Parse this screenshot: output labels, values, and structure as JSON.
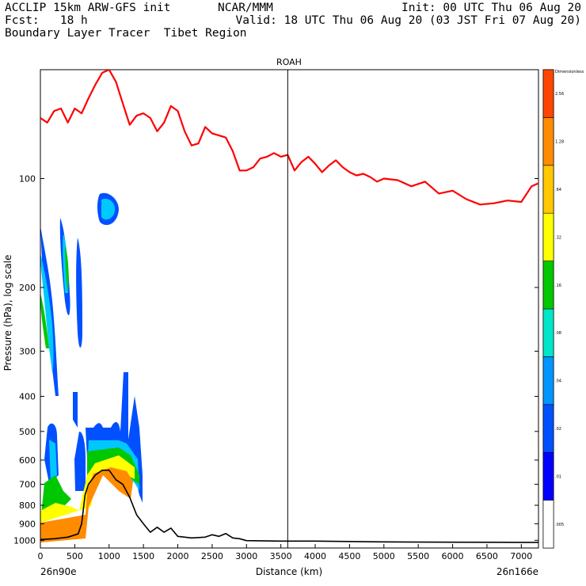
{
  "header": {
    "line1": "ACCLIP 15km ARW-GFS init",
    "model": "NCAR/MMM",
    "line2": "Fcst:   18 h",
    "line3": "Boundary Layer Tracer  Tibet Region",
    "init": "Init: 00 UTC Thu 06 Aug 20",
    "valid": "Valid: 18 UTC Thu 06 Aug 20 (03 JST Fri 07 Aug 20)"
  },
  "chart_data": {
    "type": "cross-section",
    "title": "ROAH",
    "xlabel": "Distance (km)",
    "ylabel": "Pressure (hPa), log scale",
    "xlim": [
      0,
      7250
    ],
    "ylim_hpa": [
      1050,
      50
    ],
    "x_ticks": [
      0,
      500,
      1000,
      1500,
      2000,
      2500,
      3000,
      3500,
      4000,
      4500,
      5000,
      5500,
      6000,
      6500,
      7000
    ],
    "x_tick_labels": [
      "0",
      "500",
      "1000",
      "1500",
      "2000",
      "2500",
      "3000",
      "3500",
      "4000",
      "4500",
      "5000",
      "5500",
      "6000",
      "6500",
      "7000"
    ],
    "y_ticks": [
      100,
      200,
      300,
      400,
      500,
      600,
      700,
      800,
      900,
      1000
    ],
    "y_tick_labels": [
      "100",
      "200",
      "300",
      "400",
      "500",
      "600",
      "700",
      "800",
      "900",
      "1000"
    ],
    "start_label": "26n90e",
    "end_label": "26n166e",
    "vertical_marker_km": 3600,
    "colorbar": {
      "unit_label": "Dimensionless",
      "levels": [
        ".005",
        ".01",
        ".02",
        ".04",
        ".08",
        ".16",
        ".32",
        ".64",
        "1.28",
        "2.56"
      ],
      "colors": [
        "#ffffff",
        "#0000ff",
        "#0050ff",
        "#0096ff",
        "#00e6c8",
        "#00c800",
        "#ffff00",
        "#ffc800",
        "#ff8c00",
        "#ff4600"
      ]
    },
    "series": [
      {
        "name": "tropopause",
        "color": "#ff0000",
        "x": [
          0,
          100,
          200,
          300,
          400,
          500,
          600,
          700,
          800,
          900,
          1000,
          1100,
          1200,
          1300,
          1400,
          1500,
          1600,
          1700,
          1800,
          1900,
          2000,
          2100,
          2200,
          2300,
          2400,
          2500,
          2600,
          2700,
          2800,
          2900,
          3000,
          3100,
          3200,
          3300,
          3400,
          3500,
          3600,
          3700,
          3800,
          3900,
          4000,
          4100,
          4200,
          4300,
          4400,
          4500,
          4600,
          4700,
          4800,
          4900,
          5000,
          5200,
          5400,
          5600,
          5800,
          6000,
          6200,
          6400,
          6600,
          6800,
          7000,
          7150,
          7250
        ],
        "p": [
          68,
          70,
          65,
          64,
          70,
          64,
          66,
          60,
          55,
          51,
          50,
          54,
          62,
          71,
          67,
          66,
          68,
          74,
          70,
          63,
          65,
          74,
          81,
          80,
          72,
          75,
          76,
          77,
          84,
          95,
          95,
          93,
          88,
          87,
          85,
          87,
          86,
          95,
          90,
          87,
          91,
          96,
          92,
          89,
          93,
          96,
          98,
          97,
          99,
          102,
          100,
          101,
          105,
          102,
          110,
          108,
          114,
          118,
          117,
          115,
          116,
          105,
          103
        ]
      },
      {
        "name": "terrain",
        "color": "#000000",
        "x": [
          0,
          200,
          400,
          550,
          600,
          650,
          700,
          800,
          900,
          1000,
          1100,
          1200,
          1300,
          1400,
          1500,
          1600,
          1700,
          1800,
          1900,
          2000,
          2200,
          2400,
          2500,
          2600,
          2700,
          2800,
          2900,
          3000,
          3500,
          4000,
          5000,
          6000,
          7000,
          7250
        ],
        "p": [
          995,
          990,
          980,
          960,
          900,
          750,
          700,
          660,
          640,
          640,
          680,
          700,
          760,
          850,
          900,
          950,
          920,
          950,
          925,
          975,
          985,
          980,
          965,
          975,
          958,
          985,
          990,
          1002,
          1005,
          1005,
          1010,
          1012,
          1013,
          1013
        ]
      }
    ]
  }
}
